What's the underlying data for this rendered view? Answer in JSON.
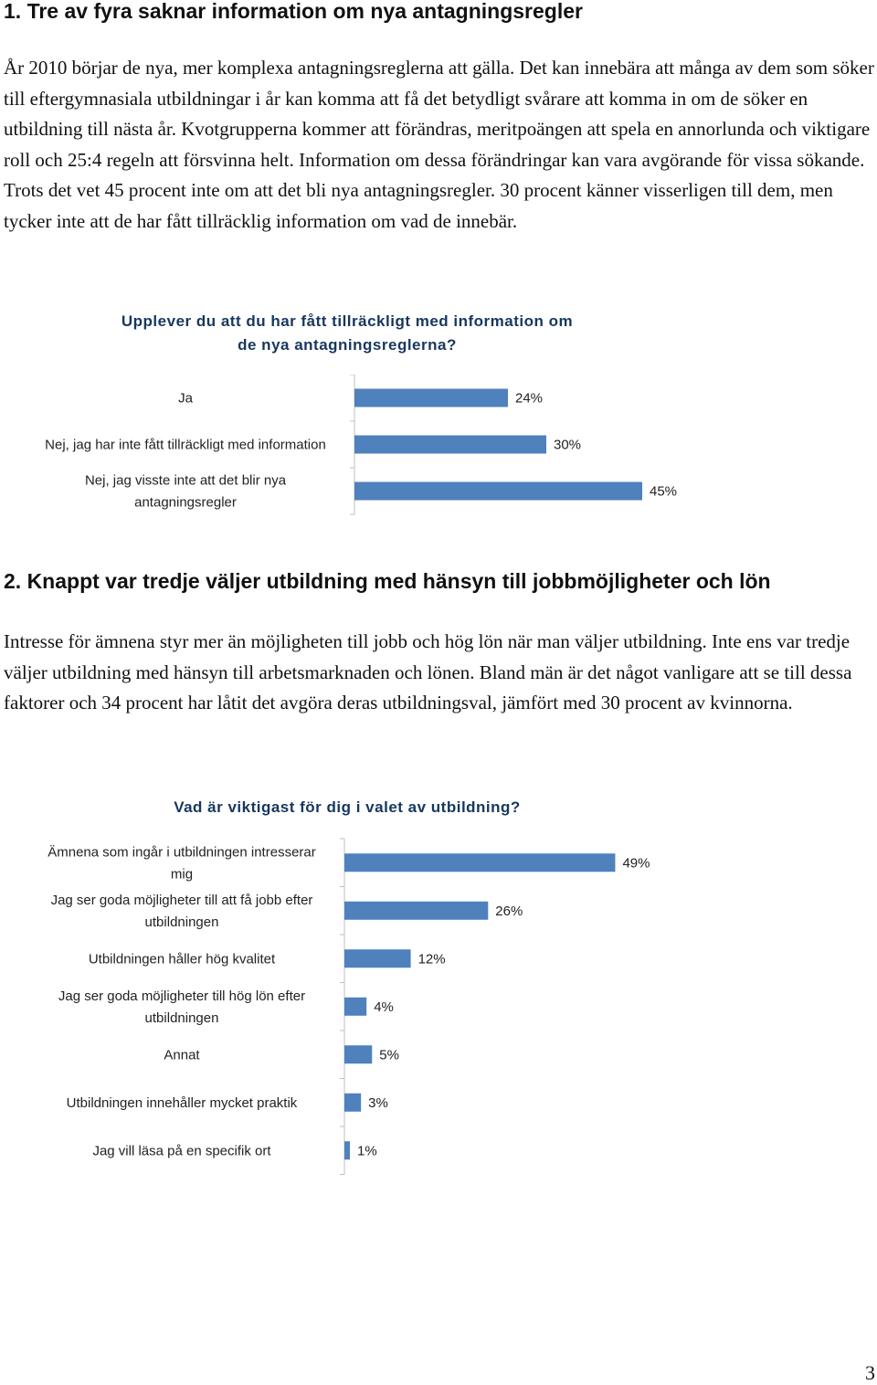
{
  "section1": {
    "heading": "1. Tre av fyra saknar information om nya antagningsregler",
    "paragraph": "År 2010 börjar de nya, mer komplexa antagningsreglerna att gälla. Det kan innebära att många av dem som söker till eftergymnasiala utbildningar i år kan komma att få det betydligt svårare att komma in om de söker en utbildning till nästa år. Kvotgrupperna kommer att förändras, meritpoängen att spela en annorlunda och viktigare roll och 25:4 regeln att försvinna helt. Information om dessa förändringar kan vara avgörande för vissa sökande. Trots det vet 45 procent inte om att det bli nya antagningsregler. 30 procent känner visserligen till dem, men tycker inte att de har fått tillräcklig information om vad de innebär."
  },
  "section2": {
    "heading": "2. Knappt var tredje väljer utbildning med hänsyn till jobbmöjligheter och lön",
    "paragraph": "Intresse för ämnena styr mer än möjligheten till jobb och hög lön när man väljer utbildning. Inte ens var tredje väljer utbildning med hänsyn till arbetsmarknaden och lönen. Bland män är det något vanligare att se till dessa faktorer och 34 procent har låtit det avgöra deras utbildningsval, jämfört med 30 procent av kvinnorna."
  },
  "colors": {
    "bar": "#4f81bd",
    "axis": "#bfbfbf",
    "title": "#17375e"
  },
  "chart_data": [
    {
      "type": "bar",
      "orientation": "horizontal",
      "title_lines": [
        "Upplever du att du har fått tillräckligt med information om",
        "de nya antagningsreglerna?"
      ],
      "categories": [
        [
          "Ja"
        ],
        [
          "Nej, jag har inte fått tillräckligt med information"
        ],
        [
          "Nej, jag visste inte att det blir nya",
          "antagningsregler"
        ]
      ],
      "values": [
        24,
        30,
        45
      ],
      "value_labels": [
        "24%",
        "30%",
        "45%"
      ],
      "unit": "%",
      "xlim": [
        0,
        100
      ],
      "grid": false,
      "legend": "none"
    },
    {
      "type": "bar",
      "orientation": "horizontal",
      "title_lines": [
        "Vad är viktigast för dig i valet av utbildning?"
      ],
      "categories": [
        [
          "Ämnena som ingår i utbildningen intresserar",
          "mig"
        ],
        [
          "Jag ser goda möjligheter till att få jobb efter",
          "utbildningen"
        ],
        [
          "Utbildningen håller hög kvalitet"
        ],
        [
          "Jag ser goda möjligheter till hög lön efter",
          "utbildningen"
        ],
        [
          "Annat"
        ],
        [
          "Utbildningen innehåller mycket praktik"
        ],
        [
          "Jag vill läsa på en specifik ort"
        ]
      ],
      "values": [
        49,
        26,
        12,
        4,
        5,
        3,
        1
      ],
      "value_labels": [
        "49%",
        "26%",
        "12%",
        "4%",
        "5%",
        "3%",
        "1%"
      ],
      "unit": "%",
      "xlim": [
        0,
        100
      ],
      "grid": false,
      "legend": "none"
    }
  ],
  "page_number": "3"
}
